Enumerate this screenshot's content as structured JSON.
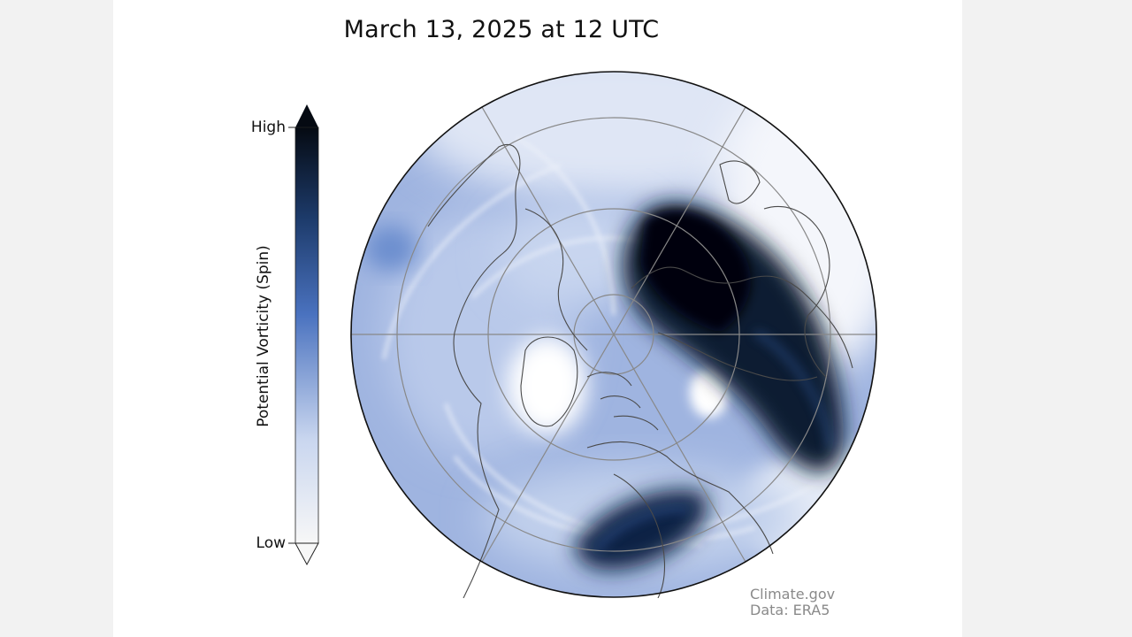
{
  "title": "March 13, 2025 at 12 UTC",
  "colorbar": {
    "label": "Potential Vorticity (Spin)",
    "high_label": "High",
    "low_label": "Low",
    "colors": [
      "#f7f7f7",
      "#c9d6ef",
      "#4a72bf",
      "#1d3b6b",
      "#050a12"
    ]
  },
  "map": {
    "projection": "north-polar-stereographic",
    "background": "#ffffff",
    "land_outline_color": "#4a4a4a",
    "graticule_color": "#888888"
  },
  "credit": {
    "source": "Climate.gov",
    "data": "Data: ERA5"
  }
}
